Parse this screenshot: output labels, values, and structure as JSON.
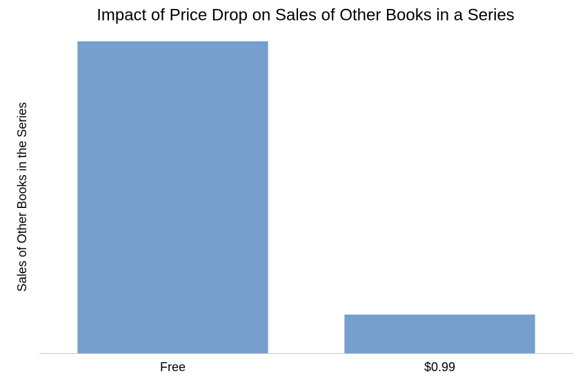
{
  "chart_data": {
    "type": "bar",
    "title": "Impact of Price Drop on Sales of Other Books in a Series",
    "y_label": "Sales of Other Books in the Series",
    "categories": [
      "Free",
      "$0.99"
    ],
    "values": [
      100,
      12.4
    ],
    "color": "#779fcd",
    "ylim": [
      0,
      100
    ],
    "grid": false
  }
}
